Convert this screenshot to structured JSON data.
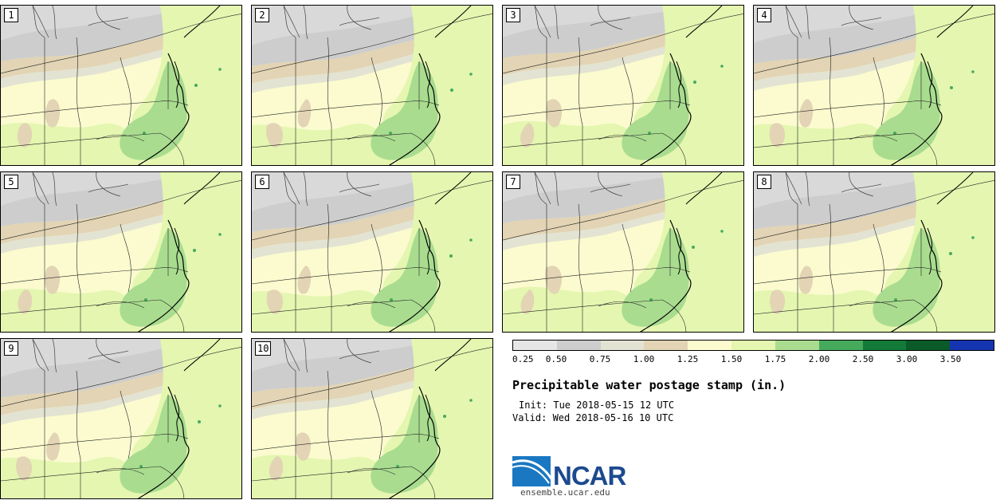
{
  "panels": [
    {
      "label": "1"
    },
    {
      "label": "2"
    },
    {
      "label": "3"
    },
    {
      "label": "4"
    },
    {
      "label": "5"
    },
    {
      "label": "6"
    },
    {
      "label": "7"
    },
    {
      "label": "8"
    },
    {
      "label": "9"
    },
    {
      "label": "10"
    }
  ],
  "colorbar": {
    "colors": [
      "#e6e6e6",
      "#cdcdcd",
      "#e3e3d3",
      "#e2d4b4",
      "#fbfbcf",
      "#e4f6b0",
      "#a9dc8f",
      "#46aa5d",
      "#137a3a",
      "#0a5a2a",
      "#1535b0"
    ],
    "ticks": [
      "0.25",
      "0.50",
      "0.75",
      "1.00",
      "1.25",
      "1.50",
      "1.75",
      "2.00",
      "2.50",
      "3.00",
      "3.50"
    ]
  },
  "title": "Precipitable water postage stamp (in.)",
  "init": "Init: Tue 2018-05-15 12 UTC",
  "valid": "Valid: Wed 2018-05-16 10 UTC",
  "logo": {
    "text": "NCAR",
    "url": "ensemble.ucar.edu"
  }
}
